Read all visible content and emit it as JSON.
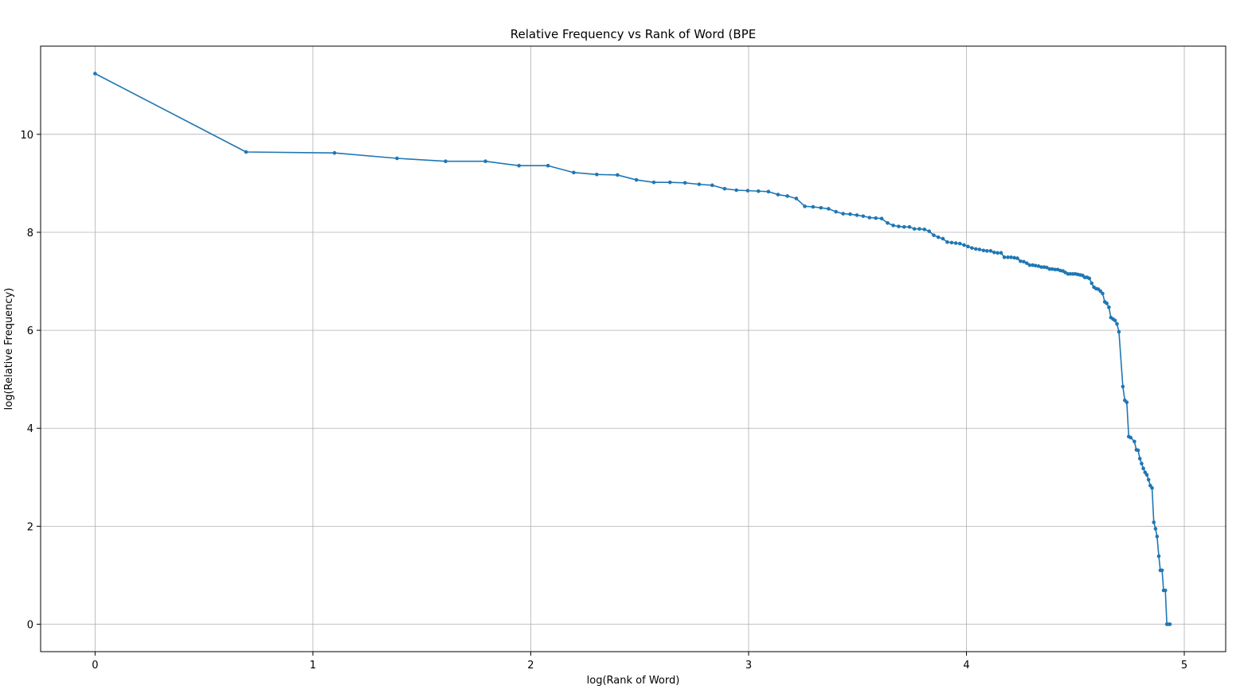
{
  "chart_data": {
    "type": "line",
    "title": "Relative Frequency vs Rank of Word (BPE",
    "xlabel": "log(Rank of Word)",
    "ylabel": "log(Relative Frequency)",
    "xlim": [
      -0.25,
      5.19
    ],
    "ylim": [
      -0.56,
      11.8
    ],
    "xticks": [
      0,
      1,
      2,
      3,
      4,
      5
    ],
    "yticks": [
      0,
      2,
      4,
      6,
      8,
      10
    ],
    "grid": true,
    "line_color": "#1f77b4",
    "series": [
      {
        "marker": "dot",
        "points": [
          [
            0.0,
            11.24
          ],
          [
            0.693,
            9.64
          ],
          [
            1.099,
            9.62
          ],
          [
            1.386,
            9.51
          ],
          [
            1.609,
            9.45
          ],
          [
            1.792,
            9.45
          ],
          [
            1.946,
            9.36
          ],
          [
            2.079,
            9.36
          ],
          [
            2.197,
            9.22
          ],
          [
            2.303,
            9.18
          ],
          [
            2.398,
            9.17
          ],
          [
            2.485,
            9.07
          ],
          [
            2.565,
            9.02
          ],
          [
            2.639,
            9.02
          ],
          [
            2.708,
            9.01
          ],
          [
            2.773,
            8.98
          ],
          [
            2.833,
            8.96
          ],
          [
            2.89,
            8.89
          ],
          [
            2.944,
            8.86
          ],
          [
            2.996,
            8.85
          ],
          [
            3.045,
            8.84
          ],
          [
            3.091,
            8.83
          ],
          [
            3.135,
            8.77
          ],
          [
            3.178,
            8.74
          ],
          [
            3.219,
            8.69
          ],
          [
            3.258,
            8.53
          ],
          [
            3.296,
            8.52
          ],
          [
            3.332,
            8.5
          ],
          [
            3.367,
            8.48
          ],
          [
            3.401,
            8.42
          ],
          [
            3.434,
            8.38
          ],
          [
            3.466,
            8.37
          ],
          [
            3.497,
            8.35
          ],
          [
            3.526,
            8.33
          ],
          [
            3.555,
            8.3
          ],
          [
            3.584,
            8.29
          ],
          [
            3.611,
            8.28
          ],
          [
            3.638,
            8.19
          ],
          [
            3.664,
            8.14
          ],
          [
            3.689,
            8.12
          ],
          [
            3.714,
            8.11
          ],
          [
            3.738,
            8.11
          ],
          [
            3.761,
            8.07
          ],
          [
            3.784,
            8.07
          ],
          [
            3.807,
            8.06
          ],
          [
            3.829,
            8.02
          ],
          [
            3.85,
            7.94
          ],
          [
            3.871,
            7.9
          ],
          [
            3.892,
            7.87
          ],
          [
            3.912,
            7.8
          ],
          [
            3.932,
            7.79
          ],
          [
            3.951,
            7.78
          ],
          [
            3.97,
            7.77
          ],
          [
            3.989,
            7.74
          ],
          [
            4.007,
            7.71
          ],
          [
            4.025,
            7.68
          ],
          [
            4.043,
            7.66
          ],
          [
            4.06,
            7.65
          ],
          [
            4.078,
            7.63
          ],
          [
            4.094,
            7.62
          ],
          [
            4.111,
            7.62
          ],
          [
            4.127,
            7.59
          ],
          [
            4.143,
            7.58
          ],
          [
            4.159,
            7.58
          ],
          [
            4.174,
            7.49
          ],
          [
            4.19,
            7.49
          ],
          [
            4.205,
            7.49
          ],
          [
            4.22,
            7.48
          ],
          [
            4.234,
            7.47
          ],
          [
            4.248,
            7.41
          ],
          [
            4.263,
            7.4
          ],
          [
            4.277,
            7.37
          ],
          [
            4.29,
            7.33
          ],
          [
            4.304,
            7.33
          ],
          [
            4.317,
            7.32
          ],
          [
            4.331,
            7.31
          ],
          [
            4.344,
            7.29
          ],
          [
            4.357,
            7.29
          ],
          [
            4.369,
            7.28
          ],
          [
            4.382,
            7.25
          ],
          [
            4.394,
            7.25
          ],
          [
            4.407,
            7.24
          ],
          [
            4.419,
            7.24
          ],
          [
            4.431,
            7.22
          ],
          [
            4.443,
            7.21
          ],
          [
            4.454,
            7.18
          ],
          [
            4.466,
            7.15
          ],
          [
            4.477,
            7.15
          ],
          [
            4.489,
            7.15
          ],
          [
            4.5,
            7.15
          ],
          [
            4.511,
            7.14
          ],
          [
            4.522,
            7.13
          ],
          [
            4.533,
            7.12
          ],
          [
            4.543,
            7.08
          ],
          [
            4.554,
            7.08
          ],
          [
            4.564,
            7.06
          ],
          [
            4.575,
            6.96
          ],
          [
            4.585,
            6.88
          ],
          [
            4.595,
            6.85
          ],
          [
            4.605,
            6.84
          ],
          [
            4.615,
            6.8
          ],
          [
            4.625,
            6.75
          ],
          [
            4.635,
            6.58
          ],
          [
            4.644,
            6.55
          ],
          [
            4.654,
            6.47
          ],
          [
            4.663,
            6.26
          ],
          [
            4.673,
            6.23
          ],
          [
            4.682,
            6.2
          ],
          [
            4.691,
            6.13
          ],
          [
            4.7,
            5.97
          ],
          [
            4.718,
            4.85
          ],
          [
            4.727,
            4.57
          ],
          [
            4.736,
            4.53
          ],
          [
            4.745,
            3.83
          ],
          [
            4.754,
            3.81
          ],
          [
            4.771,
            3.73
          ],
          [
            4.78,
            3.56
          ],
          [
            4.788,
            3.55
          ],
          [
            4.796,
            3.38
          ],
          [
            4.804,
            3.28
          ],
          [
            4.812,
            3.18
          ],
          [
            4.82,
            3.1
          ],
          [
            4.828,
            3.05
          ],
          [
            4.836,
            2.95
          ],
          [
            4.844,
            2.83
          ],
          [
            4.852,
            2.78
          ],
          [
            4.86,
            2.08
          ],
          [
            4.868,
            1.95
          ],
          [
            4.875,
            1.79
          ],
          [
            4.883,
            1.39
          ],
          [
            4.89,
            1.1
          ],
          [
            4.898,
            1.1
          ],
          [
            4.905,
            0.69
          ],
          [
            4.913,
            0.69
          ],
          [
            4.92,
            0.0
          ],
          [
            4.927,
            0.0
          ],
          [
            4.934,
            0.0
          ]
        ]
      }
    ]
  }
}
